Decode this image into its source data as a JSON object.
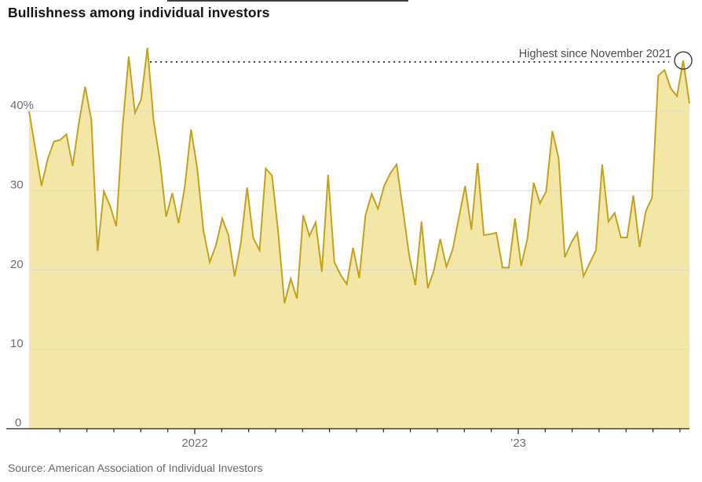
{
  "chart_data": {
    "type": "area",
    "title": "Bullishness among individual investors",
    "source": "Source: American Association of Individual Investors",
    "unit": "percent",
    "frequency_hint": "weekly survey readings",
    "grid": true,
    "legend": false,
    "ylim": [
      0,
      50
    ],
    "y_ticks": [
      0,
      10,
      20,
      30,
      40
    ],
    "y_tick_labels": [
      "0",
      "10",
      "20",
      "30",
      "40%"
    ],
    "x_year_labels": [
      "2022",
      "’23"
    ],
    "x_tick_interval": "monthly",
    "annotation": {
      "text": "Highest since November 2021",
      "highlight_index": 105,
      "highlight_value": 46.4
    },
    "values": [
      40.0,
      35.3,
      30.6,
      34.0,
      36.2,
      36.4,
      37.1,
      33.1,
      38.5,
      43.1,
      38.9,
      22.4,
      29.9,
      28.1,
      25.5,
      37.9,
      46.9,
      39.8,
      41.5,
      48.0,
      38.8,
      33.8,
      26.7,
      29.7,
      25.9,
      30.5,
      37.7,
      32.8,
      24.9,
      21.0,
      23.1,
      26.5,
      24.4,
      19.2,
      23.4,
      30.4,
      24.0,
      22.5,
      32.8,
      31.9,
      24.7,
      15.8,
      18.9,
      16.4,
      26.9,
      24.3,
      26.0,
      19.8,
      32.0,
      21.0,
      19.4,
      18.2,
      22.8,
      19.0,
      26.9,
      29.6,
      27.7,
      30.6,
      32.2,
      33.3,
      27.7,
      21.9,
      18.1,
      26.1,
      17.7,
      20.0,
      23.9,
      20.4,
      22.6,
      26.6,
      30.6,
      25.1,
      33.5,
      24.4,
      24.5,
      24.7,
      20.3,
      20.3,
      26.5,
      20.5,
      24.0,
      31.0,
      28.4,
      29.9,
      37.5,
      34.1,
      21.6,
      23.4,
      24.7,
      19.2,
      20.9,
      22.5,
      33.3,
      26.1,
      27.2,
      24.1,
      24.1,
      29.4,
      22.9,
      27.4,
      29.1,
      44.5,
      45.2,
      42.9,
      41.9,
      46.4,
      41.0
    ],
    "colors": {
      "area_fill": "#f2e7a6",
      "line": "#c2a31e",
      "grid": "#d9d9d9",
      "axis": "#1f1f1f",
      "title_text": "#141414",
      "label_text": "#6e6e6e",
      "annotation_text": "#4d4d4d"
    }
  }
}
